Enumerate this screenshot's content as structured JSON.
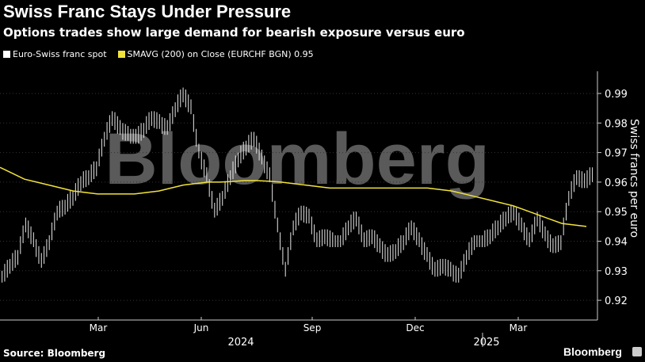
{
  "title": "Swiss Franc Stays Under Pressure",
  "subtitle": "Options trades show large demand for bearish exposure versus euro",
  "source": "Source: Bloomberg",
  "brand": "Bloomberg",
  "watermark": "Bloomberg",
  "chart_data": {
    "type": "line",
    "title": "Swiss Franc Stays Under Pressure",
    "ylabel": "Swiss francs per euro",
    "ylim": [
      0.915,
      0.995
    ],
    "yticks": [
      "0.99",
      "0.98",
      "0.97",
      "0.96",
      "0.95",
      "0.94",
      "0.93",
      "0.92"
    ],
    "xticks": [
      {
        "label": "Mar",
        "week": 11
      },
      {
        "label": "Jun",
        "week": 24
      },
      {
        "label": "Sep",
        "week": 38
      },
      {
        "label": "Dec",
        "week": 51
      },
      {
        "label": "Mar",
        "week": 64
      }
    ],
    "years": [
      {
        "label": "2024",
        "week": 29
      },
      {
        "label": "2025",
        "week": 60
      }
    ],
    "x_unit": "weeks since mid-Dec 2023 (approx.)",
    "series": [
      {
        "name": "Euro-Swiss franc spot",
        "color": "#ffffff",
        "values": [
          0.928,
          0.932,
          0.935,
          0.946,
          0.94,
          0.933,
          0.94,
          0.95,
          0.952,
          0.955,
          0.96,
          0.962,
          0.965,
          0.975,
          0.982,
          0.978,
          0.976,
          0.975,
          0.978,
          0.982,
          0.98,
          0.978,
          0.985,
          0.99,
          0.985,
          0.97,
          0.962,
          0.95,
          0.955,
          0.962,
          0.968,
          0.972,
          0.975,
          0.968,
          0.962,
          0.945,
          0.93,
          0.945,
          0.95,
          0.948,
          0.94,
          0.942,
          0.94,
          0.94,
          0.945,
          0.948,
          0.94,
          0.942,
          0.938,
          0.935,
          0.937,
          0.94,
          0.945,
          0.94,
          0.935,
          0.93,
          0.932,
          0.93,
          0.928,
          0.935,
          0.94,
          0.94,
          0.942,
          0.945,
          0.948,
          0.95,
          0.945,
          0.94,
          0.948,
          0.942,
          0.938,
          0.94,
          0.955,
          0.962,
          0.96,
          0.963
        ]
      },
      {
        "name": "SMAVG (200)  on Close (EURCHF BGN) 0.95",
        "color": "#f2e33a",
        "values": [
          0.965,
          0.963,
          0.961,
          0.96,
          0.959,
          0.958,
          0.957,
          0.9565,
          0.956,
          0.956,
          0.956,
          0.956,
          0.9565,
          0.957,
          0.958,
          0.959,
          0.9595,
          0.96,
          0.96,
          0.9602,
          0.9605,
          0.9605,
          0.9603,
          0.96,
          0.9595,
          0.959,
          0.9585,
          0.958,
          0.958,
          0.958,
          0.958,
          0.958,
          0.958,
          0.958,
          0.958,
          0.958,
          0.9575,
          0.957,
          0.956,
          0.955,
          0.954,
          0.953,
          0.952,
          0.9505,
          0.949,
          0.9475,
          0.946,
          0.9455,
          0.945
        ]
      }
    ],
    "legend_position": "top-left"
  }
}
